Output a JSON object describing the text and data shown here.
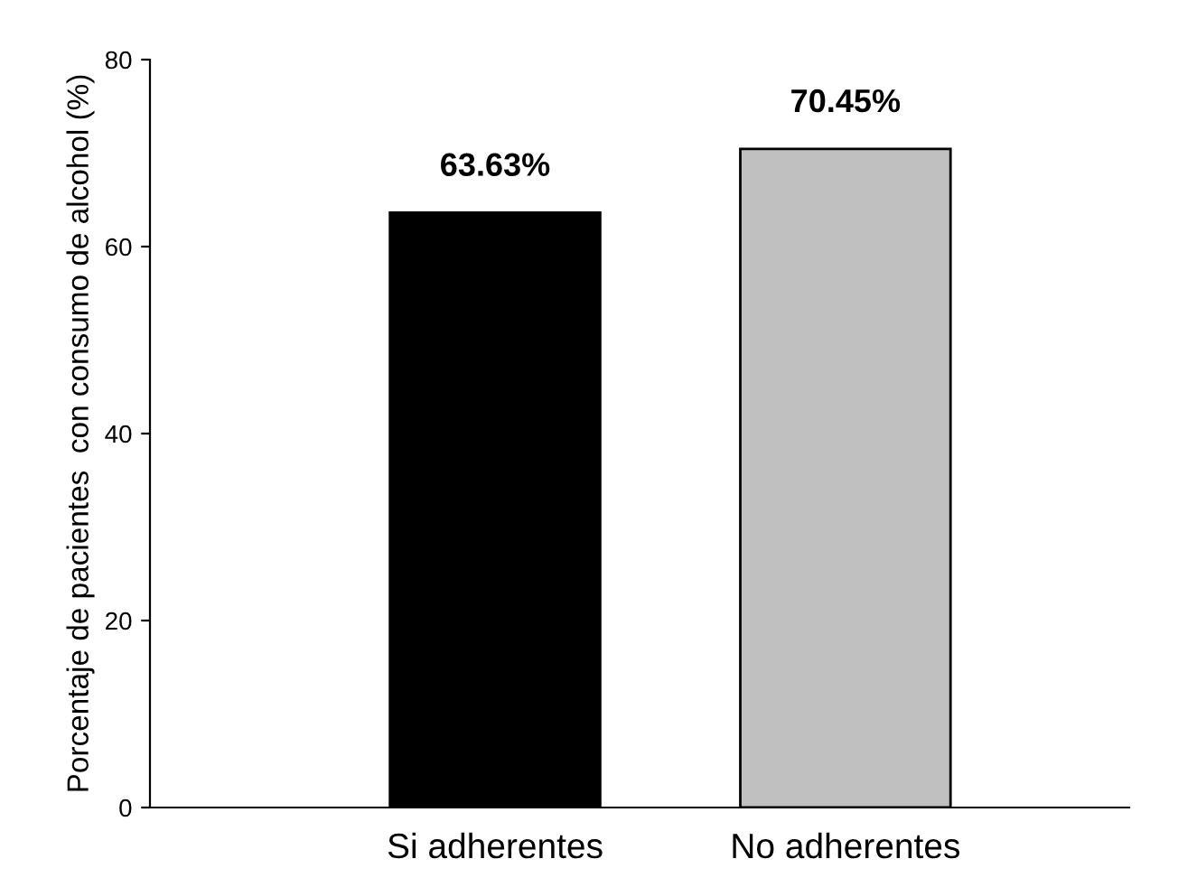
{
  "chart_data": {
    "type": "bar",
    "ylabel": "Porcentaje de pacientes  con consumo de alcohol (%)",
    "categories": [
      "Si adherentes",
      "No adherentes"
    ],
    "values": [
      63.63,
      70.45
    ],
    "colors": [
      "#000000",
      "#c0c0c0"
    ],
    "value_labels": [
      "63.63%",
      "70.45%"
    ],
    "ylim": [
      0,
      80
    ],
    "yticks": [
      0,
      20,
      40,
      60,
      80
    ],
    "grid": false,
    "legend": false
  }
}
